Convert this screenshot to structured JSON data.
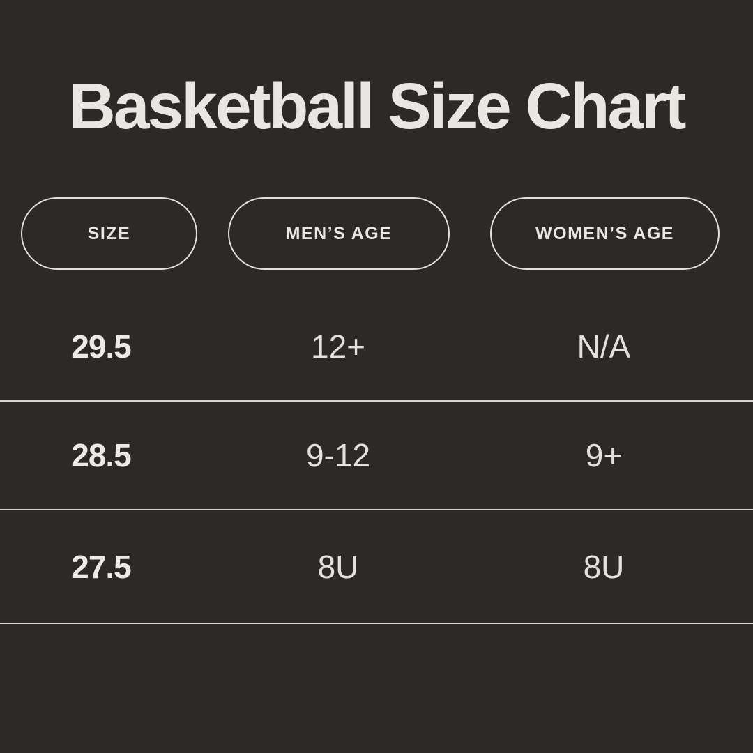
{
  "title": "Basketball Size Chart",
  "colors": {
    "background": "#2b2a29",
    "text": "#e9e7e2",
    "divider": "#d9d6d2"
  },
  "chart_data": {
    "type": "table",
    "title": "Basketball Size Chart",
    "columns": [
      "SIZE",
      "MEN’S AGE",
      "WOMEN’S AGE"
    ],
    "rows": [
      [
        "29.5",
        "12+",
        "N/A"
      ],
      [
        "28.5",
        "9-12",
        "9+"
      ],
      [
        "27.5",
        "8U",
        "8U"
      ]
    ]
  }
}
